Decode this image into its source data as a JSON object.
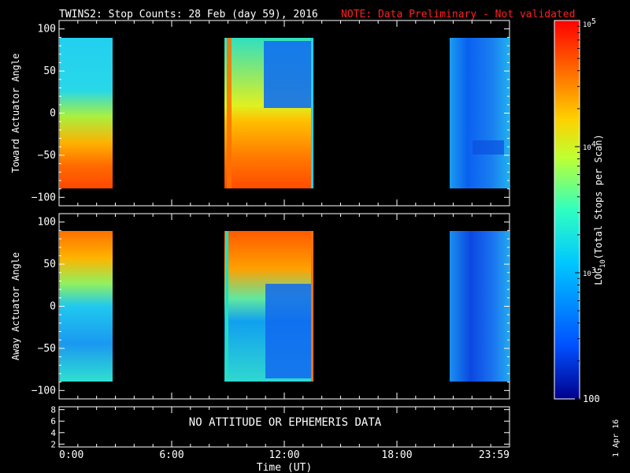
{
  "header": {
    "title": "TWINS2: Stop Counts: 28 Feb (day  59), 2016",
    "note": "NOTE: Data Preliminary - Not validated",
    "note_color": "#ff2020"
  },
  "footer": {
    "date_stamp": "1 Apr 16",
    "xlabel": "Time (UT)"
  },
  "colorbar": {
    "label": "LOG10(Total Stops per Scan)",
    "range": [
      100,
      100000
    ],
    "scale": "log",
    "tick_labels": [
      "100",
      "10^3",
      "10^4",
      "10^5"
    ],
    "colormap": [
      "#00008c",
      "#0050ff",
      "#00c8ff",
      "#30ffc0",
      "#c0ff30",
      "#ffd000",
      "#ff6000",
      "#ff0000"
    ]
  },
  "chart_data": [
    {
      "type": "heatmap",
      "name": "toward",
      "ylabel": "Toward Actuator Angle",
      "xlim": [
        0,
        24
      ],
      "ylim": [
        -110,
        110
      ],
      "y_ticks": [
        100,
        50,
        0,
        -50,
        -100
      ],
      "x_ticks": [
        "0:00",
        "6:00",
        "12:00",
        "18:00",
        "23:59"
      ],
      "grid": false,
      "data_blocks": [
        {
          "t_start": 0.0,
          "t_end": 2.6,
          "angle_range": [
            -90,
            90
          ]
        },
        {
          "t_start": 8.7,
          "t_end": 13.6,
          "angle_range": [
            -90,
            90
          ]
        },
        {
          "t_start": 21.0,
          "t_end": 24.0,
          "angle_range": [
            -90,
            90
          ]
        }
      ]
    },
    {
      "type": "heatmap",
      "name": "away",
      "ylabel": "Away Actuator Angle",
      "xlim": [
        0,
        24
      ],
      "ylim": [
        -110,
        110
      ],
      "y_ticks": [
        100,
        50,
        0,
        -50,
        -100
      ],
      "x_ticks": [
        "0:00",
        "6:00",
        "12:00",
        "18:00",
        "23:59"
      ],
      "grid": false,
      "data_blocks": [
        {
          "t_start": 0.0,
          "t_end": 2.6,
          "angle_range": [
            -90,
            90
          ]
        },
        {
          "t_start": 8.7,
          "t_end": 13.6,
          "angle_range": [
            -90,
            90
          ]
        },
        {
          "t_start": 21.0,
          "t_end": 24.0,
          "angle_range": [
            -90,
            90
          ]
        }
      ]
    },
    {
      "type": "line",
      "name": "ephemeris",
      "message": "NO ATTITUDE OR EPHEMERIS DATA",
      "ylim": [
        1.5,
        8.5
      ],
      "y_ticks": [
        8,
        6,
        4,
        2
      ],
      "x_ticks": [
        "0:00",
        "6:00",
        "12:00",
        "18:00",
        "23:59"
      ]
    }
  ]
}
